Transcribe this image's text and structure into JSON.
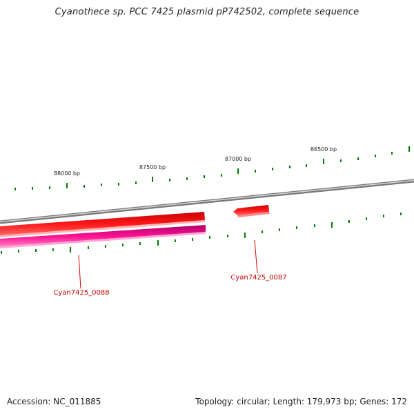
{
  "title": "Cyanothece sp. PCC 7425 plasmid pP742502, complete sequence",
  "footer": {
    "accession_label": "Accession: NC_011885",
    "summary_label": "Topology: circular; Length: 179,973 bp; Genes: 172"
  },
  "scale_labels": [
    {
      "text": "88000 bp"
    },
    {
      "text": "87500 bp"
    },
    {
      "text": "87000 bp"
    },
    {
      "text": "86500 bp"
    }
  ],
  "genes": [
    {
      "name": "Cyan7425_0088",
      "strand": "reverse",
      "color": "#ff0000"
    },
    {
      "name": "Cyan7425_0087",
      "strand": "reverse",
      "color": "#ff0000"
    }
  ],
  "cds": [
    {
      "strand": "reverse",
      "color": "#e5007e"
    }
  ],
  "colors": {
    "backbone": "#888888",
    "ticks": "#008000",
    "gene": "#ff0000",
    "cds": "#ff1493",
    "label": "#cc0000"
  }
}
